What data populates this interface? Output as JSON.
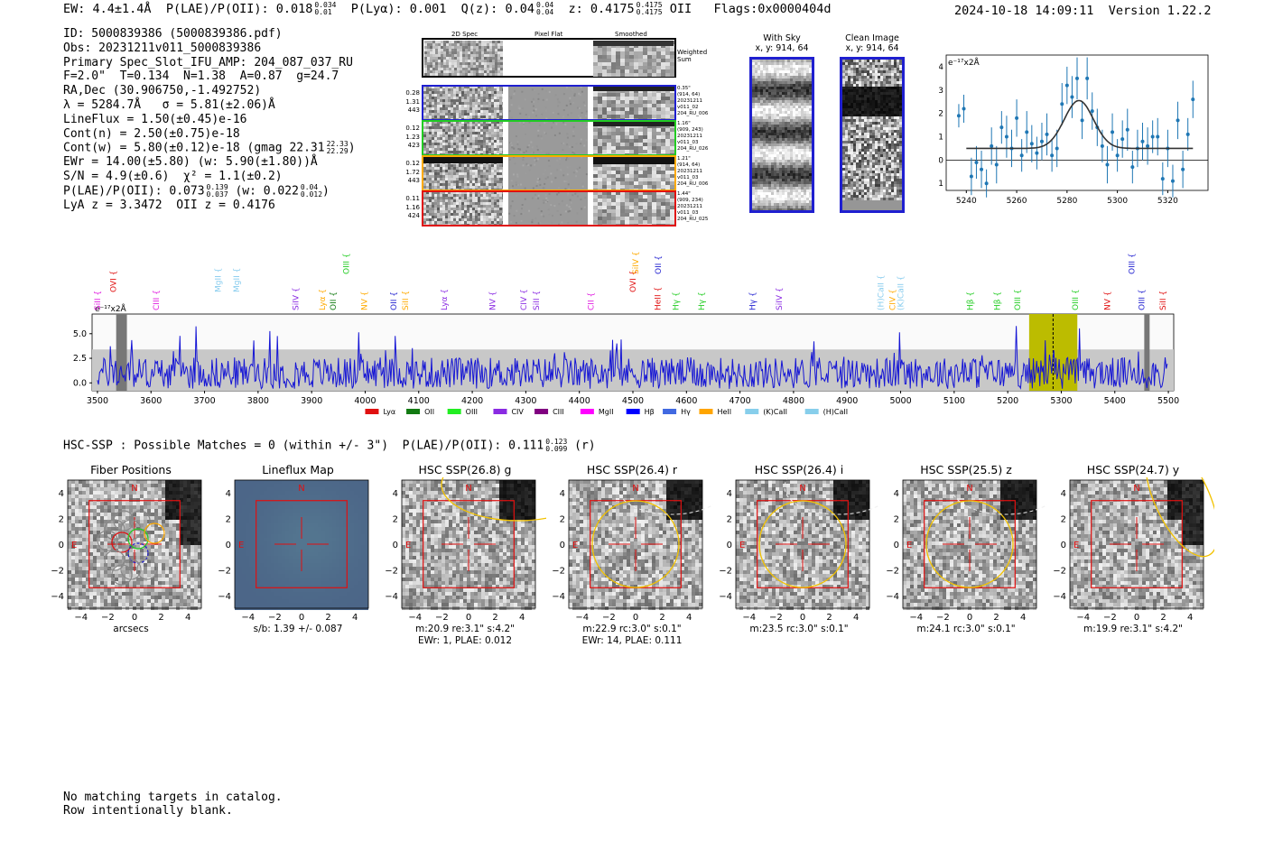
{
  "header": {
    "ew": "EW: 4.4±1.4Å",
    "plae_label": "P(LAE)/P(OII): 0.018",
    "plae_hi": "0.034",
    "plae_lo": "0.01",
    "plya": "P(Lyα): 0.001",
    "q_label": "Q(z): 0.04",
    "q_hi": "0.04",
    "q_lo": "0.04",
    "z_label": "z: 0.4175",
    "z_hi": "0.4175",
    "z_lo": "0.4175",
    "z_line": "OII",
    "flags": "Flags:0x0000404d",
    "datetime": "2024-10-18 14:09:11",
    "version": "Version 1.22.2"
  },
  "info": {
    "id": "ID: 5000839386 (5000839386.pdf)",
    "obs": "Obs: 20231211v011_5000839386",
    "primary": "Primary Spec_Slot_IFU_AMP: 204_087_037_RU",
    "params": "F=2.0\"  T=0.134  N=1.38  A=0.87  g=24.7",
    "radec": "RA,Dec (30.906750,-1.492752)",
    "lambda": "λ = 5284.7Å   σ = 5.81(±2.06)Å",
    "lineflux": "LineFlux = 1.50(±0.45)e-16",
    "contn": "Cont(n) = 2.50(±0.75)e-18",
    "contw": "Cont(w) = 5.80(±0.12)e-18 (gmag 22.31",
    "contw_hi": "22.33",
    "contw_lo": "22.29",
    "ewr": "EWr = 14.00(±5.80) (w: 5.90(±1.80))Å",
    "sn": "S/N = 4.9(±0.6)  χ² = 1.1(±0.2)",
    "plae2": "P(LAE)/P(OII): 0.073",
    "plae2_hi": "0.139",
    "plae2_lo": "0.037",
    "plae2_w": "(w: 0.022",
    "plae2_w_hi": "0.04",
    "plae2_w_lo": "0.012",
    "lya_oii": "LyA z = 3.3472  OII z = 0.4176"
  },
  "spec_panel": {
    "col_2d": "2D Spec",
    "col_flat": "Pixel Flat",
    "col_smooth": "Smoothed",
    "weighted_sum": "Weighted\nSum",
    "rows": [
      {
        "left": [
          "0.28",
          "1.31",
          "443"
        ],
        "right": "0.35\"\n(914, 64)\n20231211\nv011_02\n204_RU_006",
        "color": "#1f1fd0"
      },
      {
        "left": [
          "0.12",
          "1.23",
          "423"
        ],
        "right": "1.16\"\n(909, 243)\n20231211\nv011_03\n204_RU_026",
        "color": "#22cc22"
      },
      {
        "left": [
          "0.12",
          "1.72",
          "443"
        ],
        "right": "1.21\"\n(914, 64)\n20231211\nv011_03\n204_RU_006",
        "color": "#ffaa00"
      },
      {
        "left": [
          "0.11",
          "1.16",
          "424"
        ],
        "right": "1.44\"\n(909, 234)\n20231211\nv011_03\n204_RU_025",
        "color": "#e01010"
      }
    ]
  },
  "cutouts_top": {
    "sky_title": "With Sky",
    "sky_xy": "x, y: 914, 64",
    "clean_title": "Clean Image",
    "clean_xy": "x, y: 914, 64"
  },
  "mini_plot": {
    "ylabel": "e⁻¹⁷x2Å",
    "xticks": [
      "5240",
      "5260",
      "5280",
      "5300",
      "5320"
    ],
    "yticks": [
      "−1",
      "0",
      "1",
      "2",
      "3",
      "4"
    ]
  },
  "main_spectrum": {
    "unit": "e⁻¹⁷x2Å",
    "xticks": [
      "3500",
      "3600",
      "3700",
      "3800",
      "3900",
      "4000",
      "4100",
      "4200",
      "4300",
      "4400",
      "4500",
      "4600",
      "4700",
      "4800",
      "4900",
      "5000",
      "5100",
      "5200",
      "5300",
      "5400",
      "5500"
    ],
    "yticks": [
      "0.0",
      "2.5",
      "5.0"
    ],
    "lines": [
      {
        "label": "SiII",
        "w": 3500,
        "color": "#e01ae0",
        "row": 0
      },
      {
        "label": "OVI",
        "w": 3530,
        "color": "#e01010",
        "row": 1
      },
      {
        "label": "CIII",
        "w": 3610,
        "color": "#e01ae0",
        "row": 0
      },
      {
        "label": "MgII",
        "w": 3725,
        "color": "#88ccee",
        "row": 1
      },
      {
        "label": "MgII",
        "w": 3760,
        "color": "#88ccee",
        "row": 1
      },
      {
        "label": "SiIV",
        "w": 3870,
        "color": "#8a2be2",
        "row": 0
      },
      {
        "label": "Lyα",
        "w": 3920,
        "color": "#ffaa00",
        "row": 0
      },
      {
        "label": "OII",
        "w": 3940,
        "color": "#127a12",
        "row": 0
      },
      {
        "label": "OIII",
        "w": 3965,
        "color": "#22cc22",
        "row": 2
      },
      {
        "label": "NV",
        "w": 3998,
        "color": "#ffaa00",
        "row": 0
      },
      {
        "label": "OII",
        "w": 4053,
        "color": "#1f1fd0",
        "row": 0
      },
      {
        "label": "SiII",
        "w": 4075,
        "color": "#ffaa00",
        "row": 0
      },
      {
        "label": "Lyα",
        "w": 4148,
        "color": "#8a2be2",
        "row": 0
      },
      {
        "label": "NV",
        "w": 4238,
        "color": "#8a2be2",
        "row": 0
      },
      {
        "label": "CIV",
        "w": 4296,
        "color": "#8a2be2",
        "row": 0
      },
      {
        "label": "SiII",
        "w": 4320,
        "color": "#8a2be2",
        "row": 0
      },
      {
        "label": "CII",
        "w": 4422,
        "color": "#e01ae0",
        "row": 0
      },
      {
        "label": "OVI",
        "w": 4500,
        "color": "#e01010",
        "row": 1
      },
      {
        "label": "SiIV",
        "w": 4505,
        "color": "#ffaa00",
        "row": 2
      },
      {
        "label": "HeII",
        "w": 4546,
        "color": "#e01010",
        "row": 0
      },
      {
        "label": "OII",
        "w": 4547,
        "color": "#1f1fd0",
        "row": 2
      },
      {
        "label": "Hγ",
        "w": 4580,
        "color": "#22cc22",
        "row": 0
      },
      {
        "label": "Hγ",
        "w": 4628,
        "color": "#22cc22",
        "row": 0
      },
      {
        "label": "Hγ",
        "w": 4723,
        "color": "#1f1fd0",
        "row": 0
      },
      {
        "label": "SiIV",
        "w": 4773,
        "color": "#8a2be2",
        "row": 0
      },
      {
        "label": "(H)CaII",
        "w": 4963,
        "color": "#88ccee",
        "row": 0
      },
      {
        "label": "CIV",
        "w": 4985,
        "color": "#ffaa00",
        "row": 0
      },
      {
        "label": "(K)CaII",
        "w": 5000,
        "color": "#88ccee",
        "row": 0
      },
      {
        "label": "Hβ",
        "w": 5130,
        "color": "#22cc22",
        "row": 0
      },
      {
        "label": "Hβ",
        "w": 5180,
        "color": "#22cc22",
        "row": 0
      },
      {
        "label": "OIII",
        "w": 5218,
        "color": "#22cc22",
        "row": 0
      },
      {
        "label": "OIII",
        "w": 5326,
        "color": "#22cc22",
        "row": 0
      },
      {
        "label": "NV",
        "w": 5386,
        "color": "#e01010",
        "row": 0
      },
      {
        "label": "OIII",
        "w": 5432,
        "color": "#1f1fd0",
        "row": 2
      },
      {
        "label": "OIII",
        "w": 5450,
        "color": "#1f1fd0",
        "row": 0
      },
      {
        "label": "SiII",
        "w": 5490,
        "color": "#e01010",
        "row": 0
      }
    ],
    "legend": [
      {
        "label": "Lyα",
        "color": "#e01010"
      },
      {
        "label": "OII",
        "color": "#127a12"
      },
      {
        "label": "OIII",
        "color": "#22ee22"
      },
      {
        "label": "CIV",
        "color": "#8a2be2"
      },
      {
        "label": "CIII",
        "color": "#800080"
      },
      {
        "label": "MgII",
        "color": "#ff00ff"
      },
      {
        "label": "Hβ",
        "color": "#0000ff"
      },
      {
        "label": "Hγ",
        "color": "#4169e1"
      },
      {
        "label": "HeII",
        "color": "#ffa500"
      },
      {
        "label": "(K)CaII",
        "color": "#87ceeb"
      },
      {
        "label": "(H)CaII",
        "color": "#87ceeb"
      }
    ]
  },
  "hsc": {
    "title": "HSC-SSP : Possible Matches = 0 (within +/- 3\")  P(LAE)/P(OII): 0.111",
    "title_hi": "0.123",
    "title_lo": "0.099",
    "title_tail": "(r)",
    "ticks": [
      "−4",
      "−2",
      "0",
      "2",
      "4"
    ],
    "north": "N",
    "east": "E",
    "cutouts": [
      {
        "title": "Fiber Positions",
        "sub1": "arcsecs",
        "sub2": ""
      },
      {
        "title": "Lineflux Map",
        "sub1": "s/b: 1.39 +/- 0.087",
        "sub2": ""
      },
      {
        "title": "HSC SSP(26.8) g",
        "sub1": "m:20.9  re:3.1\"  s:4.2\"",
        "sub2": "EWr: 1, PLAE: 0.012"
      },
      {
        "title": "HSC SSP(26.4) r",
        "sub1": "m:22.9  rc:3.0\"  s:0.1\"",
        "sub2": "EWr: 14, PLAE: 0.111"
      },
      {
        "title": "HSC SSP(26.4) i",
        "sub1": "m:23.5  rc:3.0\"  s:0.1\"",
        "sub2": ""
      },
      {
        "title": "HSC SSP(25.5) z",
        "sub1": "m:24.1  rc:3.0\"  s:0.1\"",
        "sub2": ""
      },
      {
        "title": "HSC SSP(24.7) y",
        "sub1": "m:19.9  re:3.1\"  s:4.2\"",
        "sub2": ""
      }
    ]
  },
  "footer": {
    "line1": "No matching targets in catalog.",
    "line2": "Row intentionally blank."
  },
  "chart_data": [
    {
      "type": "scatter",
      "title": "",
      "xlabel": "",
      "ylabel": "e⁻¹⁷x2Å",
      "xlim": [
        5232,
        5336
      ],
      "ylim": [
        -1.3,
        4.5
      ],
      "series": [
        {
          "x": [
            5237,
            5239,
            5242,
            5244,
            5246,
            5248,
            5250,
            5252,
            5254,
            5256,
            5258,
            5260,
            5262,
            5264,
            5266,
            5268,
            5270,
            5272,
            5274,
            5276,
            5278,
            5280,
            5282,
            5284,
            5286,
            5288,
            5290,
            5292,
            5294,
            5296,
            5298,
            5300,
            5302,
            5304,
            5306,
            5308,
            5310,
            5312,
            5314,
            5316,
            5318,
            5320,
            5322,
            5324,
            5326,
            5328,
            5330
          ],
          "y": [
            1.9,
            2.2,
            -0.7,
            -0.1,
            -0.4,
            -1.0,
            0.6,
            -0.2,
            1.4,
            1.0,
            0.5,
            1.8,
            0.2,
            1.2,
            0.7,
            0.3,
            0.8,
            1.1,
            0.2,
            0.5,
            2.4,
            3.2,
            2.7,
            3.5,
            1.7,
            3.5,
            2.1,
            1.4,
            0.6,
            -0.2,
            1.2,
            0.2,
            0.9,
            1.3,
            -0.3,
            0.5,
            0.8,
            0.6,
            1.0,
            1.0,
            -0.8,
            0.5,
            -0.9,
            1.7,
            -0.4,
            1.1,
            2.6
          ],
          "yerr": [
            0.5,
            0.6,
            0.8,
            0.7,
            0.8,
            0.6,
            0.8,
            0.8,
            0.7,
            0.9,
            0.8,
            0.8,
            0.7,
            0.9,
            0.8,
            0.7,
            0.8,
            0.9,
            0.7,
            0.8,
            0.9,
            0.8,
            0.9,
            0.9,
            0.8,
            0.9,
            0.8,
            0.8,
            0.7,
            0.8,
            0.8,
            0.7,
            0.8,
            0.9,
            0.7,
            0.8,
            0.8,
            0.8,
            0.7,
            0.8,
            0.7,
            0.8,
            0.7,
            0.8,
            0.8,
            0.7,
            0.8
          ]
        },
        {
          "name": "",
          "type": "line",
          "model": "gaussian",
          "center": 5284.7,
          "sigma": 5.81,
          "amplitude": 2.05,
          "baseline": 0.5,
          "x_range": [
            5240,
            5330
          ]
        }
      ]
    },
    {
      "type": "line",
      "title": "",
      "xlabel": "",
      "ylabel": "e⁻¹⁷x2Å",
      "xlim": [
        3490,
        5510
      ],
      "ylim": [
        -0.8,
        7.0
      ],
      "highlight_range": [
        5240,
        5330
      ],
      "line_marker": 5284.7,
      "bad_regions": [
        [
          3535,
          3555
        ],
        [
          5455,
          5465
        ]
      ],
      "series": [
        {
          "name": "",
          "description": "noisy flux spectrum",
          "samples": 1000
        }
      ]
    }
  ]
}
